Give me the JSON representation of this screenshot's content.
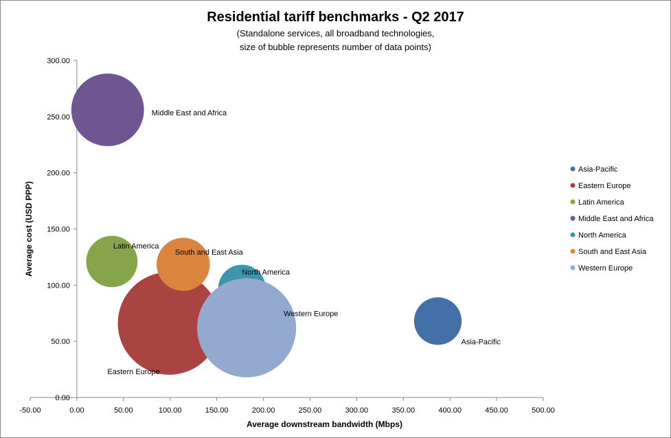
{
  "chart_data": {
    "type": "bubble",
    "title": "Residential tariff benchmarks - Q2 2017",
    "subtitle_line1": "(Standalone services, all broadband technologies,",
    "subtitle_line2": "size of bubble represents number of data points)",
    "xlabel": "Average downstream bandwidth (Mbps)",
    "ylabel": "Average cost (USD PPP)",
    "xlim": [
      -50,
      500
    ],
    "ylim": [
      0,
      300
    ],
    "x_ticks": [
      -50,
      0,
      50,
      100,
      150,
      200,
      250,
      300,
      350,
      400,
      450,
      500
    ],
    "y_ticks": [
      0,
      50,
      100,
      150,
      200,
      250,
      300
    ],
    "legend_position": "right",
    "series": [
      {
        "name": "Asia-Pacific",
        "x": 387,
        "y": 68,
        "size": 12,
        "color": "#4470A8"
      },
      {
        "name": "Eastern Europe",
        "x": 99,
        "y": 66,
        "size": 56,
        "color": "#A94442"
      },
      {
        "name": "Latin America",
        "x": 37.5,
        "y": 121,
        "size": 14,
        "color": "#86A44A"
      },
      {
        "name": "Middle East and Africa",
        "x": 33,
        "y": 256,
        "size": 28,
        "color": "#6F5591"
      },
      {
        "name": "North America",
        "x": 177,
        "y": 97,
        "size": 12,
        "color": "#3D96AE"
      },
      {
        "name": "South and East Asia",
        "x": 114,
        "y": 118.5,
        "size": 15,
        "color": "#DB843D"
      },
      {
        "name": "Western Europe",
        "x": 182,
        "y": 62,
        "size": 52,
        "color": "#93A9CF"
      }
    ]
  }
}
